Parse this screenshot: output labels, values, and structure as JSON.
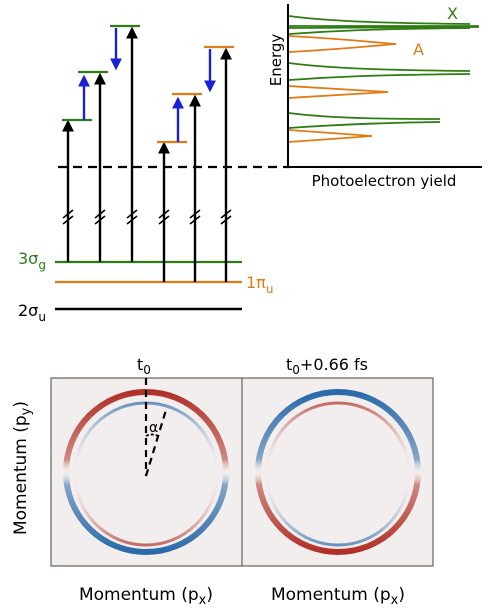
{
  "levels": {
    "sigma_g": {
      "base": "3σ",
      "sub": "g",
      "color": "#2e7d12"
    },
    "pi_u": {
      "base": "1π",
      "sub": "u",
      "color": "#e07b16"
    },
    "sigma_u": {
      "base": "2σ",
      "sub": "u",
      "color": "#000000"
    }
  },
  "spectrum": {
    "ylabel": "Energy",
    "xlabel": "Photoelectron yield",
    "label_x": "X",
    "label_a": "A",
    "color_x": "#2e7d12",
    "color_a": "#e07b16"
  },
  "maps": {
    "panel_left_title": {
      "base": "t",
      "sub": "0",
      "tail": ""
    },
    "panel_right_title": {
      "base": "t",
      "sub": "0",
      "tail": "+0.66 fs"
    },
    "angle_label": "α",
    "ylabel": {
      "base": "Momentum (p",
      "sub": "y",
      "tail": ")"
    },
    "xlabel": {
      "base": "Momentum (p",
      "sub": "x",
      "tail": ")"
    },
    "color_positive": "#b03028",
    "color_negative": "#2a6aa8",
    "background": "#f3eeee"
  },
  "colors": {
    "transition_arrow": "#1a22d6",
    "excitation_arrow": "#000000"
  }
}
